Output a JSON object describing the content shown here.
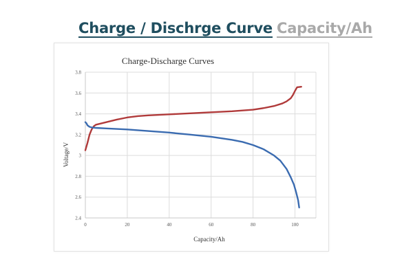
{
  "header": {
    "title": "Charge / Dischrge Curve",
    "subtitle": "Capacity/Ah"
  },
  "chart_data": {
    "type": "line",
    "title": "Charge-Discharge  Curves",
    "xlabel": "Capacity/Ah",
    "ylabel": "Voltage/V",
    "xlim": [
      0,
      110
    ],
    "ylim": [
      2.4,
      3.8
    ],
    "x_ticks": [
      0,
      20,
      40,
      60,
      80,
      100
    ],
    "y_ticks": [
      2.4,
      2.6,
      2.8,
      3,
      3.2,
      3.4,
      3.6,
      3.8
    ],
    "grid": true,
    "legend": "none",
    "series": [
      {
        "color": "#b03a3a",
        "points": [
          [
            0,
            3.05
          ],
          [
            1,
            3.12
          ],
          [
            2,
            3.2
          ],
          [
            3,
            3.25
          ],
          [
            4,
            3.28
          ],
          [
            5,
            3.295
          ],
          [
            7,
            3.305
          ],
          [
            10,
            3.32
          ],
          [
            15,
            3.345
          ],
          [
            20,
            3.365
          ],
          [
            25,
            3.378
          ],
          [
            30,
            3.385
          ],
          [
            40,
            3.395
          ],
          [
            50,
            3.405
          ],
          [
            60,
            3.415
          ],
          [
            70,
            3.425
          ],
          [
            80,
            3.44
          ],
          [
            85,
            3.455
          ],
          [
            90,
            3.475
          ],
          [
            94,
            3.5
          ],
          [
            96,
            3.52
          ],
          [
            98,
            3.55
          ],
          [
            99,
            3.58
          ],
          [
            100,
            3.62
          ],
          [
            101,
            3.655
          ],
          [
            103,
            3.66
          ]
        ]
      },
      {
        "color": "#3a6bb0",
        "points": [
          [
            0,
            3.32
          ],
          [
            0.5,
            3.31
          ],
          [
            1,
            3.29
          ],
          [
            2,
            3.275
          ],
          [
            3,
            3.27
          ],
          [
            5,
            3.265
          ],
          [
            10,
            3.26
          ],
          [
            20,
            3.25
          ],
          [
            30,
            3.235
          ],
          [
            40,
            3.22
          ],
          [
            50,
            3.2
          ],
          [
            60,
            3.18
          ],
          [
            70,
            3.15
          ],
          [
            75,
            3.13
          ],
          [
            80,
            3.1
          ],
          [
            85,
            3.06
          ],
          [
            90,
            3.0
          ],
          [
            93,
            2.95
          ],
          [
            96,
            2.87
          ],
          [
            98,
            2.79
          ],
          [
            99.5,
            2.72
          ],
          [
            100.5,
            2.65
          ],
          [
            101.5,
            2.57
          ],
          [
            102,
            2.5
          ]
        ]
      }
    ]
  }
}
